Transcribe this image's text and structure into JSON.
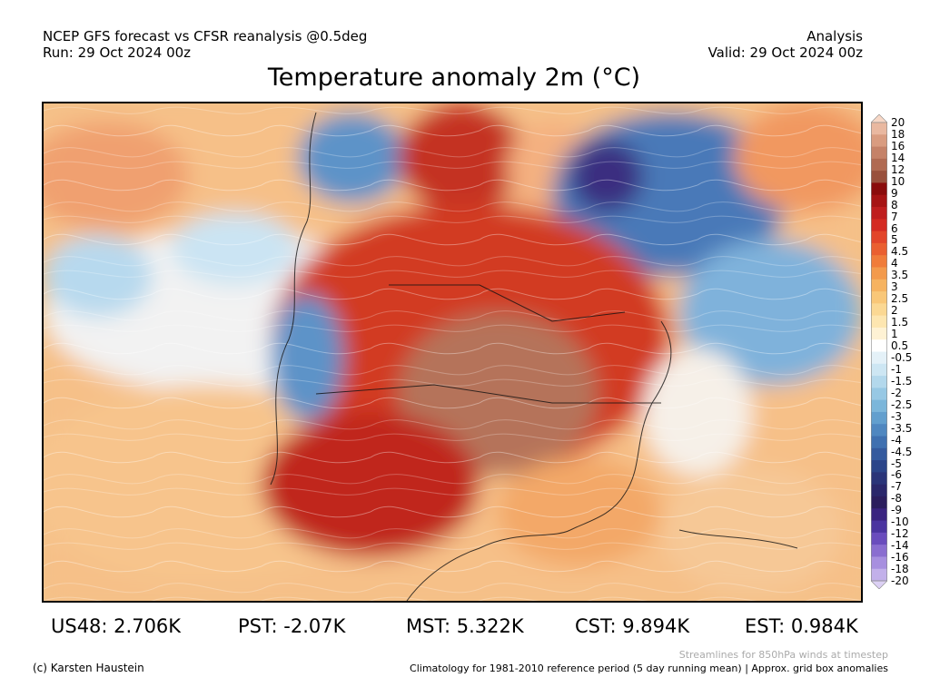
{
  "header": {
    "left_line1": "NCEP GFS forecast vs CFSR reanalysis @0.5deg",
    "left_line2": "Run: 29 Oct 2024 00z",
    "right_line1": "Analysis",
    "right_line2": "Valid: 29 Oct 2024 00z"
  },
  "title": "Temperature anomaly 2m (°C)",
  "colorbar": {
    "labels": [
      "20",
      "18",
      "16",
      "14",
      "12",
      "10",
      "9",
      "8",
      "7",
      "6",
      "5",
      "4.5",
      "4",
      "3.5",
      "3",
      "2.5",
      "2",
      "1.5",
      "1",
      "0.5",
      "-0.5",
      "-1",
      "-1.5",
      "-2",
      "-2.5",
      "-3",
      "-3.5",
      "-4",
      "-4.5",
      "-5",
      "-6",
      "-7",
      "-8",
      "-9",
      "-10",
      "-12",
      "-14",
      "-16",
      "-18",
      "-20"
    ],
    "colors": [
      "#f7d7c6",
      "#e9b8a0",
      "#d99c80",
      "#c58268",
      "#b06a52",
      "#99503c",
      "#8a0c0c",
      "#a61414",
      "#bf1e1e",
      "#d42a22",
      "#e2452a",
      "#ea5f30",
      "#f07c3a",
      "#f39a4c",
      "#f6b360",
      "#f9c778",
      "#fbd893",
      "#fde6b0",
      "#fef2d4",
      "#ffffff",
      "#e4f1f8",
      "#cde6f3",
      "#b3d8ec",
      "#97c8e4",
      "#7bb6da",
      "#629fce",
      "#4f87c0",
      "#3f70b0",
      "#345a9e",
      "#2b458a",
      "#2a3479",
      "#2a276b",
      "#2b1e5e",
      "#3a2480",
      "#4b34a0",
      "#6a4cbd",
      "#8a6dd0",
      "#a78fdf",
      "#c2b0ea",
      "#dcd0f4"
    ]
  },
  "stats": {
    "us48": "US48: 2.706K",
    "pst": "PST: -2.07K",
    "mst": "MST: 5.322K",
    "cst": "CST: 9.894K",
    "est": "EST: 0.984K"
  },
  "footer": {
    "streamlines_note": "Streamlines for 850hPa winds at timestep",
    "credit": "(c) Karsten Haustein",
    "climatology_note": "Climatology for 1981-2010 reference period (5 day running mean) | Approx. grid box anomalies"
  }
}
